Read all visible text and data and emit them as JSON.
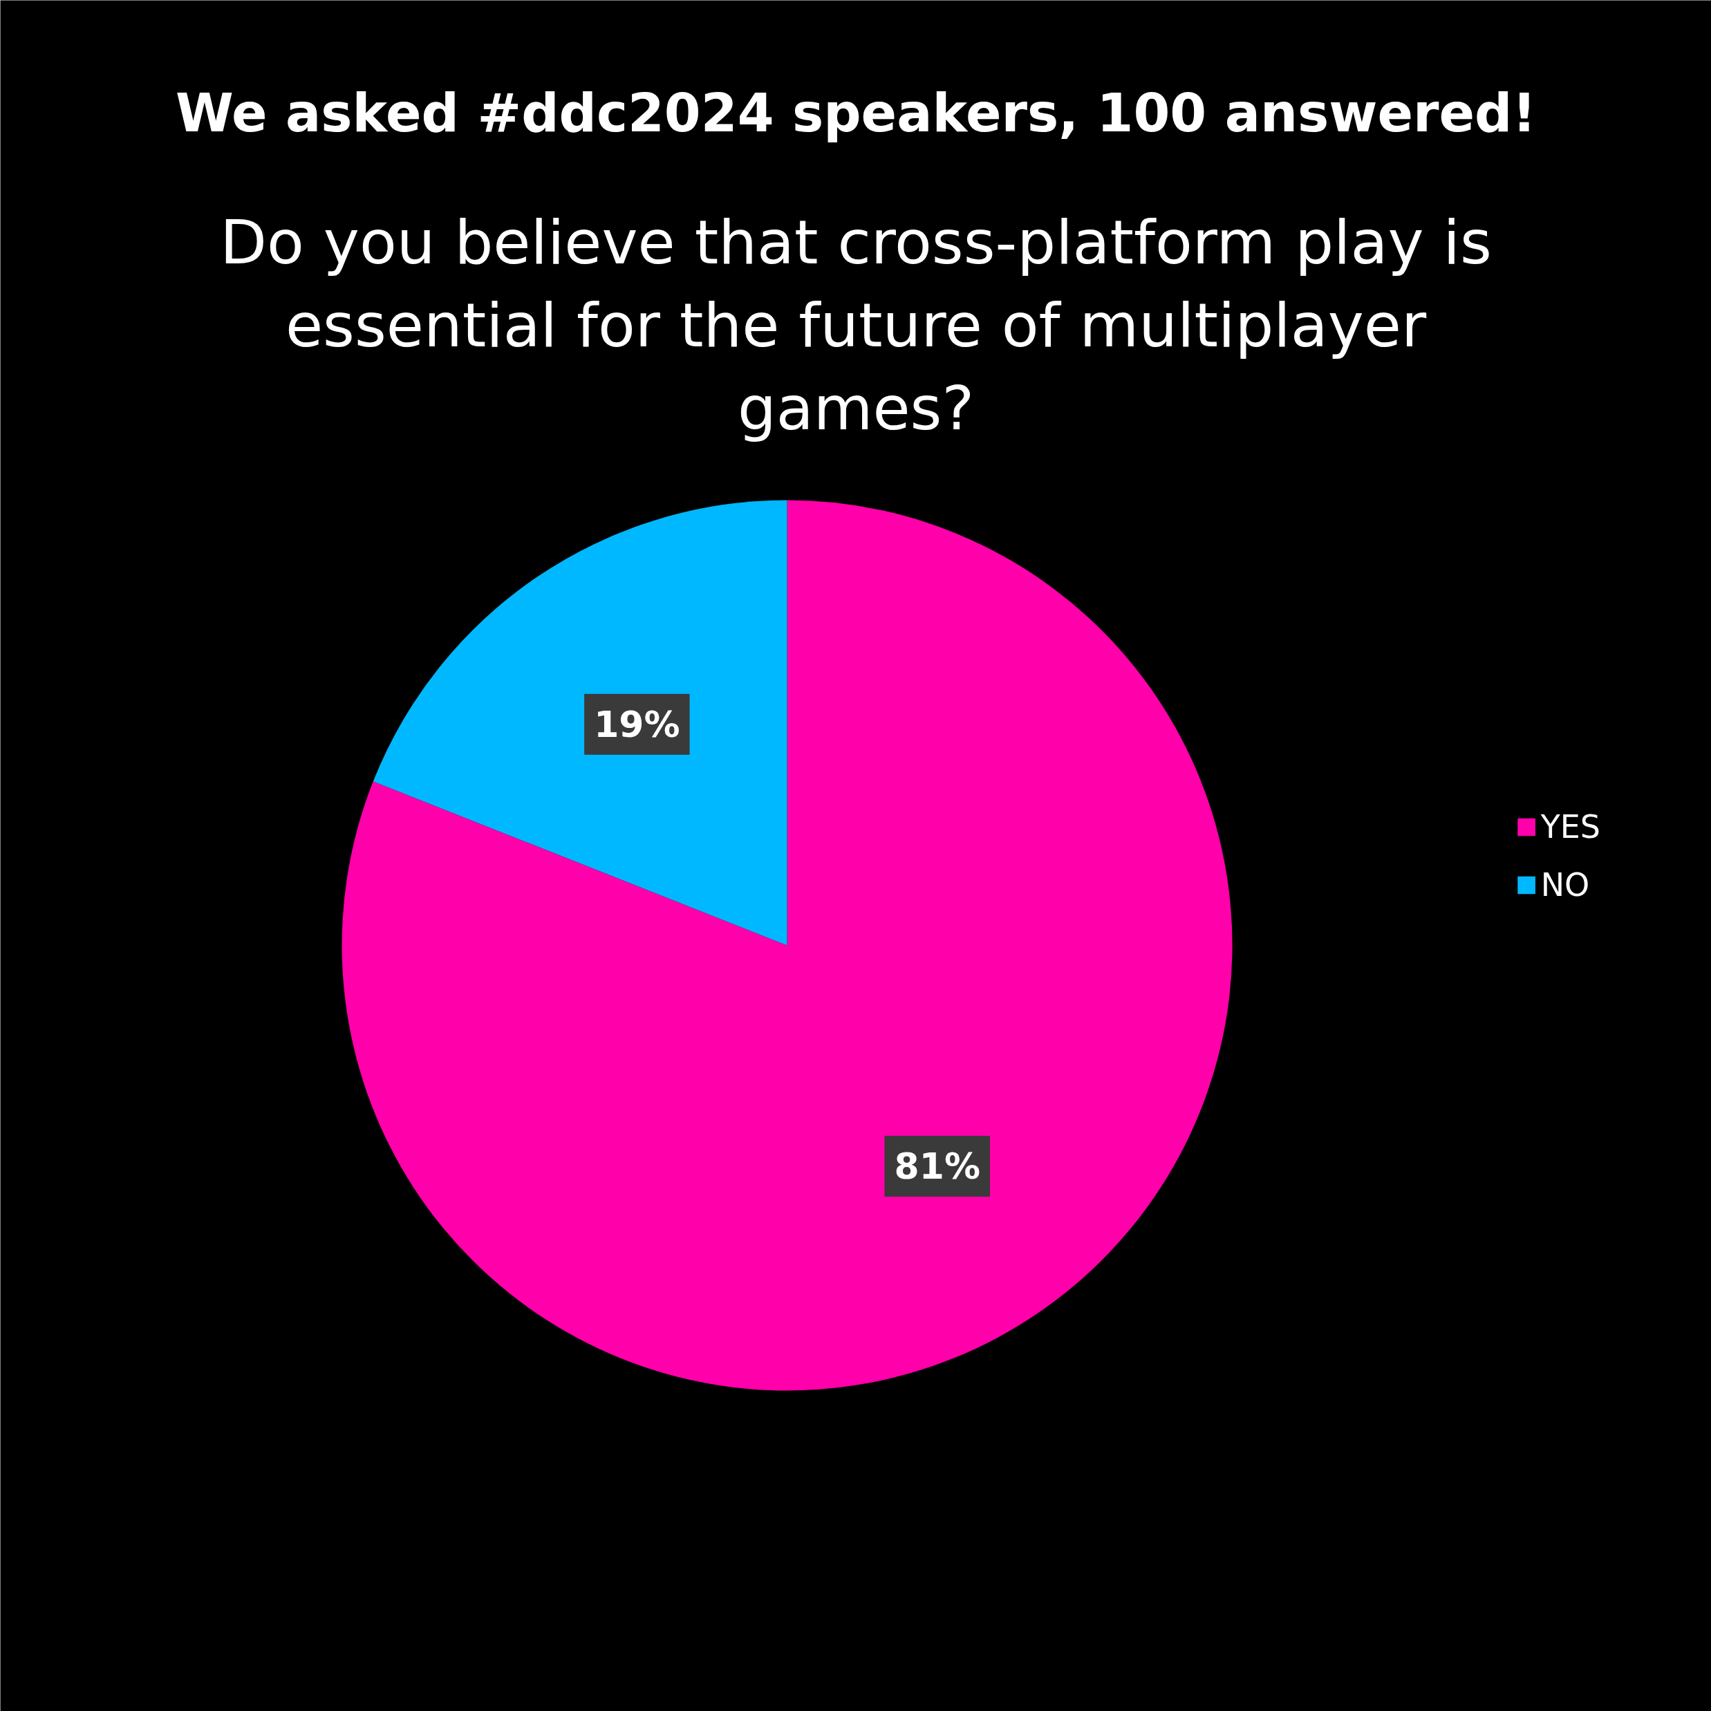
{
  "chart_data": {
    "type": "pie",
    "title": "We asked #ddc2024 speakers, 100 answered!",
    "subtitle": "Do you believe that cross-platform play is essential for the future of multiplayer games?",
    "categories": [
      "YES",
      "NO"
    ],
    "values": [
      81,
      19
    ],
    "colors": [
      "#ff00aa",
      "#00b8ff"
    ],
    "value_labels": [
      "81%",
      "19%"
    ],
    "legend": "right"
  }
}
